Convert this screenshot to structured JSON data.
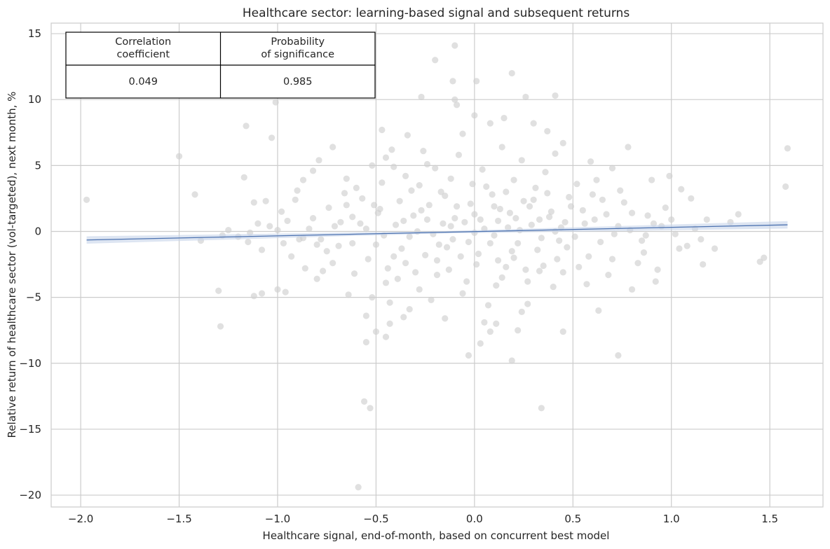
{
  "chart_data": {
    "type": "scatter",
    "title": "Healthcare sector: learning-based signal and subsequent returns",
    "xlabel": "Healthcare signal, end-of-month, based on concurrent best model",
    "ylabel": "Relative return of healthcare sector (vol-targeted), next month, %",
    "xlim": [
      -2.15,
      1.77
    ],
    "ylim": [
      -20.9,
      15.8
    ],
    "x_ticks": [
      -2.0,
      -1.5,
      -1.0,
      -0.5,
      0.0,
      0.5,
      1.0,
      1.5
    ],
    "x_tick_labels": [
      "−2.0",
      "−1.5",
      "−1.0",
      "−0.5",
      "0.0",
      "0.5",
      "1.0",
      "1.5"
    ],
    "y_ticks": [
      -20,
      -15,
      -10,
      -5,
      0,
      5,
      10,
      15
    ],
    "y_tick_labels": [
      "−20",
      "−15",
      "−10",
      "−5",
      "0",
      "5",
      "10",
      "15"
    ],
    "grid": true,
    "scatter_color": "#cfcfcf",
    "line_color": "#4c72b0",
    "band_color": "#c7d4ea",
    "regression": {
      "x": [
        -1.97,
        1.59
      ],
      "y": [
        -0.65,
        0.5
      ],
      "band_halfwidth_end": 0.28
    },
    "points": [
      [
        -1.97,
        2.4
      ],
      [
        -1.5,
        5.7
      ],
      [
        -1.42,
        2.8
      ],
      [
        -1.39,
        -0.7
      ],
      [
        -1.3,
        -4.5
      ],
      [
        -1.29,
        -7.2
      ],
      [
        -1.16,
        8.0
      ],
      [
        -1.17,
        4.1
      ],
      [
        -1.12,
        2.2
      ],
      [
        -1.06,
        2.3
      ],
      [
        -1.12,
        -4.9
      ],
      [
        -1.08,
        -4.7
      ],
      [
        -1.03,
        7.1
      ],
      [
        -1.01,
        9.8
      ],
      [
        -0.98,
        1.5
      ],
      [
        -0.96,
        -4.6
      ],
      [
        -1.0,
        -4.4
      ],
      [
        -0.97,
        -0.9
      ],
      [
        -0.9,
        3.1
      ],
      [
        -0.87,
        3.9
      ],
      [
        -0.82,
        4.6
      ],
      [
        -0.79,
        5.4
      ],
      [
        -0.72,
        6.4
      ],
      [
        -0.65,
        4.0
      ],
      [
        -0.62,
        1.1
      ],
      [
        -0.57,
        2.5
      ],
      [
        -0.55,
        -6.4
      ],
      [
        -0.52,
        -5.0
      ],
      [
        -0.5,
        -7.6
      ],
      [
        -0.47,
        7.7
      ],
      [
        -0.45,
        5.6
      ],
      [
        -0.42,
        6.2
      ],
      [
        -0.34,
        7.3
      ],
      [
        -0.27,
        10.2
      ],
      [
        -0.2,
        13.0
      ],
      [
        -0.1,
        14.1
      ],
      [
        -0.11,
        11.4
      ],
      [
        -0.1,
        10.0
      ],
      [
        -0.09,
        9.6
      ],
      [
        0.01,
        11.4
      ],
      [
        0.0,
        8.8
      ],
      [
        0.08,
        8.2
      ],
      [
        0.15,
        8.6
      ],
      [
        0.19,
        12.0
      ],
      [
        0.26,
        10.2
      ],
      [
        0.3,
        8.2
      ],
      [
        0.37,
        7.6
      ],
      [
        0.41,
        10.3
      ],
      [
        0.45,
        6.7
      ],
      [
        0.59,
        5.3
      ],
      [
        0.62,
        3.9
      ],
      [
        0.7,
        4.8
      ],
      [
        0.78,
        6.4
      ],
      [
        0.9,
        3.9
      ],
      [
        0.99,
        4.2
      ],
      [
        1.05,
        3.2
      ],
      [
        1.1,
        2.5
      ],
      [
        1.34,
        1.3
      ],
      [
        1.58,
        3.4
      ],
      [
        1.59,
        6.3
      ],
      [
        -0.56,
        -12.9
      ],
      [
        -0.53,
        -13.4
      ],
      [
        -0.59,
        -19.4
      ],
      [
        -0.55,
        -8.4
      ],
      [
        -0.45,
        -8.0
      ],
      [
        0.03,
        -8.5
      ],
      [
        -0.03,
        -9.4
      ],
      [
        0.19,
        -9.8
      ],
      [
        0.34,
        -13.4
      ],
      [
        0.45,
        -7.6
      ],
      [
        0.73,
        -9.4
      ],
      [
        0.22,
        -7.5
      ],
      [
        0.11,
        -7.0
      ],
      [
        -0.36,
        -6.5
      ],
      [
        -0.43,
        -7.0
      ],
      [
        0.63,
        -6.0
      ],
      [
        0.8,
        -4.4
      ],
      [
        0.92,
        -3.8
      ],
      [
        1.16,
        -2.5
      ],
      [
        1.45,
        -2.3
      ],
      [
        1.47,
        -2.0
      ],
      [
        1.22,
        -1.3
      ],
      [
        1.3,
        0.7
      ],
      [
        1.18,
        0.9
      ],
      [
        -1.28,
        -0.3
      ],
      [
        -1.25,
        0.1
      ],
      [
        -1.2,
        -0.4
      ],
      [
        -1.14,
        -0.1
      ],
      [
        -1.1,
        0.6
      ],
      [
        -1.04,
        0.4
      ],
      [
        -1.08,
        -1.4
      ],
      [
        -0.93,
        -1.9
      ],
      [
        -0.86,
        -2.8
      ],
      [
        -0.84,
        0.2
      ],
      [
        -0.78,
        -0.6
      ],
      [
        -0.8,
        -3.6
      ],
      [
        -0.72,
        -2.4
      ],
      [
        -0.74,
        1.8
      ],
      [
        -0.69,
        -1.1
      ],
      [
        -0.66,
        2.9
      ],
      [
        -0.64,
        -4.8
      ],
      [
        -0.61,
        -3.2
      ],
      [
        -0.6,
        3.3
      ],
      [
        -0.58,
        0.6
      ],
      [
        0.86,
        -1.6
      ],
      [
        0.88,
        1.2
      ],
      [
        0.95,
        0.4
      ],
      [
        1.02,
        -0.2
      ],
      [
        1.08,
        -1.1
      ],
      [
        0.83,
        -2.4
      ],
      [
        0.76,
        2.2
      ],
      [
        0.68,
        -3.3
      ],
      [
        0.6,
        2.8
      ],
      [
        0.57,
        -4.0
      ],
      [
        0.52,
        3.6
      ],
      [
        -0.52,
        5.0
      ],
      [
        -0.48,
        1.7
      ],
      [
        -0.41,
        -1.9
      ],
      [
        -0.35,
        4.2
      ],
      [
        -0.3,
        -3.1
      ],
      [
        -0.26,
        6.1
      ],
      [
        -0.22,
        -5.2
      ],
      [
        -0.17,
        3.0
      ],
      [
        -0.14,
        -1.2
      ],
      [
        -0.08,
        5.8
      ],
      [
        -0.04,
        -3.8
      ],
      [
        0.0,
        1.3
      ],
      [
        0.04,
        4.7
      ],
      [
        0.07,
        -5.6
      ],
      [
        0.12,
        0.8
      ],
      [
        0.16,
        -2.7
      ],
      [
        0.2,
        3.9
      ],
      [
        0.24,
        -6.1
      ],
      [
        0.28,
        1.9
      ],
      [
        0.32,
        -1.4
      ],
      [
        0.36,
        4.5
      ],
      [
        0.4,
        -4.2
      ],
      [
        0.44,
        0.3
      ],
      [
        0.48,
        2.6
      ],
      [
        -0.44,
        -2.8
      ],
      [
        -0.38,
        2.3
      ],
      [
        -0.33,
        -0.4
      ],
      [
        -0.28,
        -4.4
      ],
      [
        -0.24,
        0.9
      ],
      [
        -0.19,
        -2.2
      ],
      [
        -0.15,
        2.7
      ],
      [
        -0.11,
        -0.6
      ],
      [
        -0.06,
        -4.7
      ],
      [
        -0.02,
        2.1
      ],
      [
        0.02,
        -1.7
      ],
      [
        0.06,
        3.4
      ],
      [
        0.1,
        -0.3
      ],
      [
        0.14,
        -3.5
      ],
      [
        0.18,
        1.4
      ],
      [
        0.22,
        -0.9
      ],
      [
        0.26,
        -2.9
      ],
      [
        0.3,
        2.4
      ],
      [
        0.34,
        -0.5
      ],
      [
        0.38,
        1.1
      ],
      [
        0.42,
        -2.1
      ],
      [
        0.46,
        0.7
      ],
      [
        -0.4,
        0.5
      ],
      [
        -0.31,
        1.2
      ],
      [
        -0.21,
        -0.2
      ],
      [
        -0.12,
        0.4
      ],
      [
        -0.03,
        -0.8
      ],
      [
        0.05,
        0.2
      ],
      [
        0.13,
        1.7
      ],
      [
        0.23,
        0.1
      ],
      [
        0.33,
        0.9
      ],
      [
        0.43,
        -0.7
      ],
      [
        -0.37,
        -1.3
      ],
      [
        -0.27,
        1.6
      ],
      [
        -0.18,
        -1.0
      ],
      [
        -0.09,
        1.9
      ],
      [
        0.01,
        -2.5
      ],
      [
        0.09,
        2.8
      ],
      [
        0.19,
        -1.5
      ],
      [
        0.29,
        0.5
      ],
      [
        0.39,
        1.5
      ],
      [
        -0.46,
        -0.3
      ],
      [
        -0.32,
        3.1
      ],
      [
        -0.23,
        2.0
      ],
      [
        -0.13,
        -2.9
      ],
      [
        -0.05,
        0.7
      ],
      [
        0.08,
        -0.9
      ],
      [
        0.17,
        0.3
      ],
      [
        0.27,
        -3.8
      ],
      [
        0.37,
        2.9
      ],
      [
        0.47,
        -1.2
      ],
      [
        -0.49,
        1.4
      ],
      [
        -0.39,
        -3.6
      ],
      [
        -0.29,
        0.0
      ],
      [
        -0.2,
        4.8
      ],
      [
        -0.1,
        1.0
      ],
      [
        0.0,
        -0.1
      ],
      [
        0.1,
        1.9
      ],
      [
        0.2,
        -2.0
      ],
      [
        0.31,
        3.3
      ],
      [
        0.41,
        0.0
      ],
      [
        0.51,
        -0.4
      ],
      [
        0.55,
        1.6
      ],
      [
        0.58,
        -1.9
      ],
      [
        0.61,
        0.9
      ],
      [
        0.64,
        -0.8
      ],
      [
        0.67,
        1.3
      ],
      [
        0.7,
        -2.1
      ],
      [
        0.73,
        0.4
      ],
      [
        -0.54,
        -2.1
      ],
      [
        -0.51,
        2.0
      ],
      [
        -0.5,
        -1.0
      ],
      [
        -0.47,
        3.7
      ],
      [
        -0.43,
        -5.4
      ],
      [
        -0.36,
        0.8
      ],
      [
        -0.25,
        -1.8
      ],
      [
        -0.16,
        0.6
      ],
      [
        -0.07,
        -1.9
      ],
      [
        0.03,
        0.9
      ],
      [
        0.11,
        -4.1
      ],
      [
        0.21,
        1.0
      ],
      [
        0.35,
        -2.6
      ],
      [
        0.49,
        1.9
      ],
      [
        -0.62,
        -0.9
      ],
      [
        -0.68,
        0.7
      ],
      [
        -0.75,
        -1.5
      ],
      [
        -0.82,
        1.0
      ],
      [
        -0.89,
        -0.6
      ],
      [
        -0.95,
        0.8
      ],
      [
        0.79,
        0.1
      ],
      [
        0.85,
        -0.7
      ],
      [
        0.91,
        0.6
      ],
      [
        0.97,
        1.8
      ],
      [
        1.04,
        -1.3
      ],
      [
        1.12,
        0.2
      ],
      [
        -0.15,
        -6.6
      ],
      [
        0.05,
        -6.9
      ],
      [
        0.27,
        -5.5
      ],
      [
        -0.33,
        -5.9
      ],
      [
        0.14,
        6.4
      ],
      [
        -0.06,
        7.4
      ],
      [
        0.24,
        5.4
      ],
      [
        -0.24,
        5.1
      ],
      [
        0.41,
        5.9
      ],
      [
        -0.41,
        4.9
      ],
      [
        0.08,
        -7.6
      ],
      [
        -0.12,
        4.0
      ],
      [
        0.16,
        3.0
      ],
      [
        -0.01,
        3.6
      ],
      [
        0.25,
        2.3
      ],
      [
        -0.28,
        3.5
      ],
      [
        0.12,
        -2.2
      ],
      [
        -0.19,
        -3.3
      ],
      [
        0.33,
        -3.0
      ],
      [
        -0.35,
        -2.4
      ],
      [
        0.45,
        -3.1
      ],
      [
        -0.45,
        -3.9
      ],
      [
        0.53,
        -2.7
      ],
      [
        -0.55,
        0.2
      ],
      [
        0.56,
        0.6
      ],
      [
        0.65,
        2.4
      ],
      [
        -0.65,
        2.0
      ],
      [
        0.71,
        -0.2
      ],
      [
        -0.71,
        0.4
      ],
      [
        0.8,
        1.4
      ],
      [
        -0.8,
        -1.0
      ],
      [
        0.87,
        -0.3
      ],
      [
        -0.87,
        -0.5
      ],
      [
        1.0,
        0.9
      ],
      [
        -1.0,
        0.1
      ],
      [
        1.15,
        -0.6
      ],
      [
        -1.15,
        -0.8
      ],
      [
        0.93,
        -2.9
      ],
      [
        -0.91,
        2.4
      ],
      [
        0.74,
        3.1
      ],
      [
        -0.77,
        -3.0
      ]
    ],
    "table": {
      "headers": [
        "Correlation\ncoefficient",
        "Probability\nof significance"
      ],
      "values": [
        "0.049",
        "0.985"
      ]
    }
  }
}
